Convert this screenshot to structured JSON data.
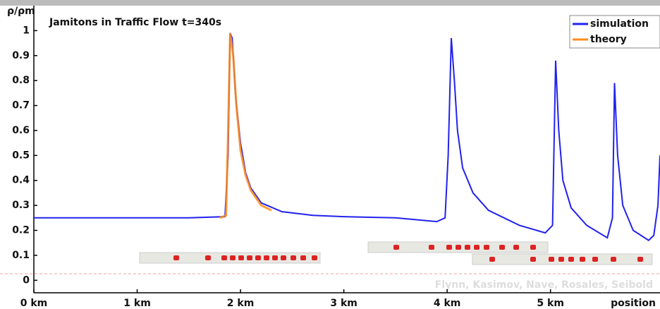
{
  "chart_data": {
    "type": "line",
    "title": "Jamitons in Traffic Flow   t=340s",
    "ylabel": "ρ/ρm",
    "xlabel": "position",
    "annotation": "Flynn, Kasimov, Nave, Rosales, Seibold",
    "xlim": [
      0,
      6.06
    ],
    "ylim": [
      -0.05,
      1.1
    ],
    "xticks": [
      {
        "value": 0,
        "label": "0 km"
      },
      {
        "value": 1,
        "label": "1 km"
      },
      {
        "value": 2,
        "label": "2 km"
      },
      {
        "value": 3,
        "label": "3 km"
      },
      {
        "value": 4,
        "label": "4 km"
      },
      {
        "value": 5,
        "label": "5 km"
      }
    ],
    "yticks": [
      0,
      0.1,
      0.2,
      0.3,
      0.4,
      0.5,
      0.6,
      0.7,
      0.8,
      0.9,
      1
    ],
    "grid": false,
    "legend": "upper right",
    "series": [
      {
        "name": "simulation",
        "color": "#2222ee",
        "x": [
          0,
          1.5,
          1.85,
          1.88,
          1.9,
          1.92,
          1.95,
          2.0,
          2.05,
          2.1,
          2.2,
          2.4,
          2.7,
          3.0,
          3.5,
          3.9,
          3.98,
          4.01,
          4.04,
          4.07,
          4.1,
          4.15,
          4.25,
          4.4,
          4.7,
          4.95,
          5.02,
          5.05,
          5.08,
          5.12,
          5.2,
          5.35,
          5.55,
          5.6,
          5.62,
          5.65,
          5.7,
          5.8,
          5.95,
          6.0,
          6.04,
          6.06
        ],
        "values": [
          0.25,
          0.25,
          0.255,
          0.5,
          0.99,
          0.97,
          0.75,
          0.55,
          0.43,
          0.37,
          0.31,
          0.275,
          0.26,
          0.255,
          0.25,
          0.235,
          0.25,
          0.5,
          0.97,
          0.8,
          0.6,
          0.45,
          0.35,
          0.28,
          0.22,
          0.19,
          0.22,
          0.88,
          0.6,
          0.4,
          0.29,
          0.22,
          0.17,
          0.25,
          0.79,
          0.5,
          0.3,
          0.2,
          0.16,
          0.18,
          0.3,
          0.5
        ]
      },
      {
        "name": "theory",
        "color": "#ff8c1a",
        "x": [
          1.8,
          1.86,
          1.88,
          1.9,
          1.93,
          1.96,
          2.0,
          2.05,
          2.1,
          2.2,
          2.3
        ],
        "values": [
          0.25,
          0.26,
          0.6,
          0.99,
          0.9,
          0.7,
          0.52,
          0.42,
          0.36,
          0.3,
          0.28
        ]
      }
    ]
  }
}
